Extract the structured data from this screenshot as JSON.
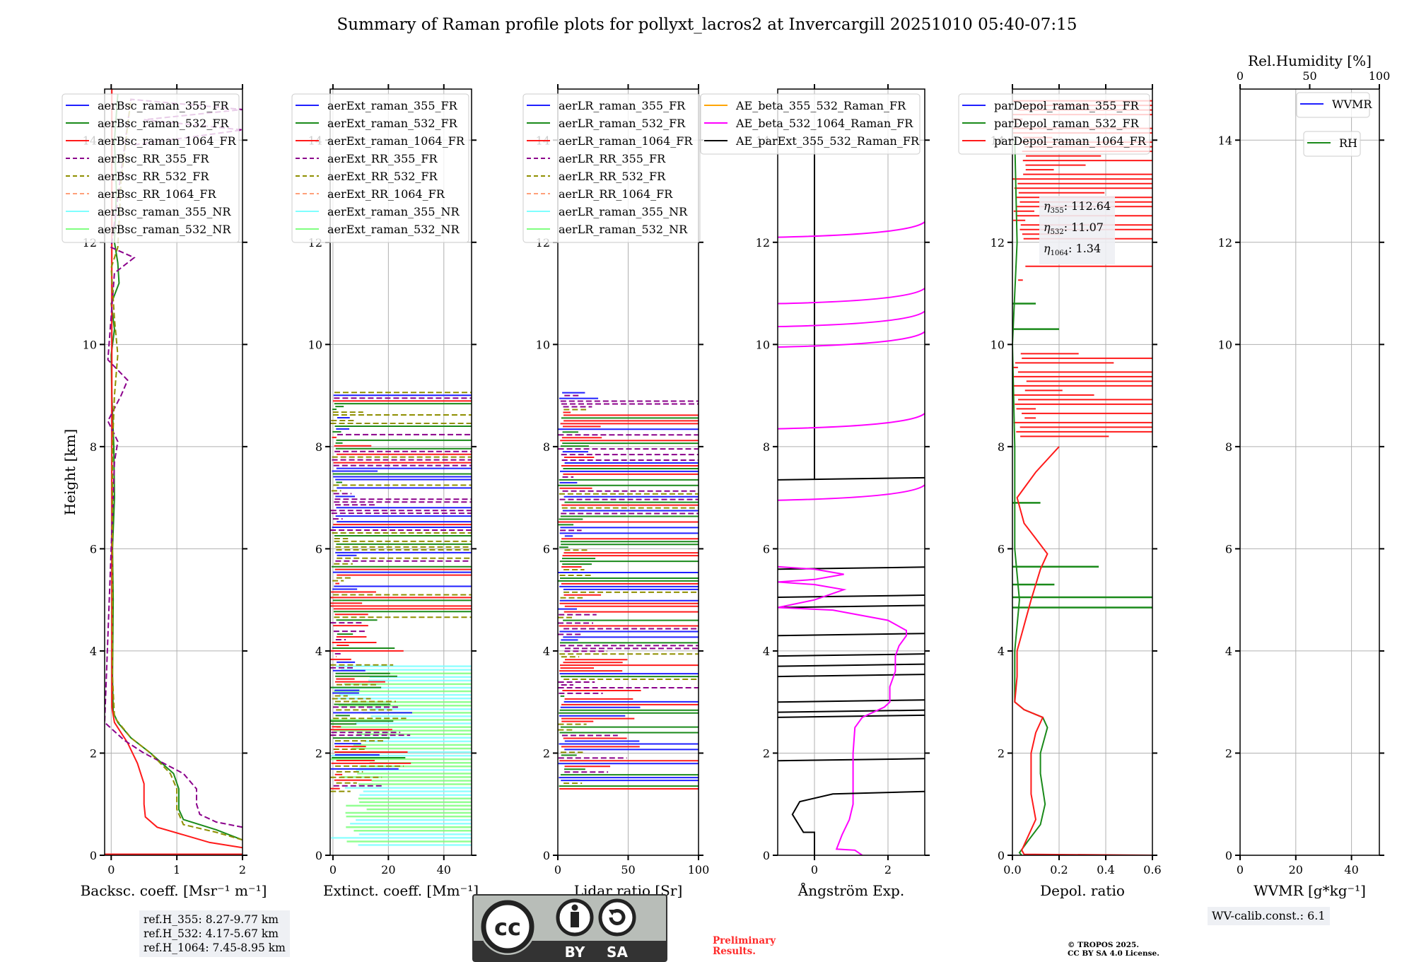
{
  "figure": {
    "title": "Summary of Raman profile plots for pollyxt_lacros2 at Invercargill 20251010 05:40-07:15",
    "ref_heights": [
      "ref.H_355: 8.27-9.77 km",
      "ref.H_532: 4.17-5.67 km",
      "ref.H_1064: 7.45-8.95 km"
    ],
    "eta_annotation": [
      {
        "label": "η355",
        "value": "112.64"
      },
      {
        "label": "η532",
        "value": "11.07"
      },
      {
        "label": "η1064",
        "value": "1.34"
      }
    ],
    "wv_calib": "WV-calib.const.: 6.1",
    "preliminary": [
      "Preliminary",
      "Results."
    ],
    "copyright": [
      "© TROPOS 2025.",
      "CC BY SA 4.0 License."
    ],
    "license_badge": {
      "cc": "cc",
      "by": "BY",
      "sa": "SA"
    }
  },
  "colors": {
    "blue": "#1f1fff",
    "green": "#1a8a1a",
    "red": "#ff1a1a",
    "purple": "#8b008b",
    "olive": "#8f8f00",
    "salmon": "#ffa07a",
    "cyan": "#7fffff",
    "lightgreen": "#80ff80",
    "orange": "#ffa500",
    "magenta": "#ff00ff",
    "black": "#000000",
    "grid": "#b0b0b0"
  },
  "chart_data": [
    {
      "type": "line",
      "id": "backscatter",
      "xlabel": "Backsc. coeff. [Msr⁻¹ m⁻¹]",
      "ylabel": "Height [km]",
      "xlim": [
        -0.1,
        2
      ],
      "ylim": [
        0,
        15
      ],
      "xticks": [
        0,
        1,
        2
      ],
      "yticks": [
        0,
        2,
        4,
        6,
        8,
        10,
        12,
        14
      ],
      "grid": true,
      "legend_position": "top-left",
      "series": [
        {
          "name": "aerBsc_raman_355_FR",
          "color": "blue",
          "dash": false,
          "points": []
        },
        {
          "name": "aerBsc_raman_532_FR",
          "color": "green",
          "dash": false,
          "points": [
            [
              2.0,
              0.3
            ],
            [
              1.6,
              0.5
            ],
            [
              1.1,
              0.7
            ],
            [
              1.03,
              0.9
            ],
            [
              1.03,
              1.3
            ],
            [
              0.95,
              1.6
            ],
            [
              0.6,
              2.0
            ],
            [
              0.3,
              2.3
            ],
            [
              0.1,
              2.6
            ],
            [
              0.03,
              2.8
            ],
            [
              0.02,
              3.5
            ],
            [
              0.03,
              5
            ],
            [
              0.02,
              6
            ],
            [
              0.05,
              7
            ],
            [
              0.04,
              8
            ],
            [
              0.01,
              9
            ],
            [
              0.0,
              9.8
            ],
            [
              0.05,
              10.3
            ],
            [
              0.0,
              10.8
            ],
            [
              0.12,
              11.2
            ],
            [
              0.1,
              11.6
            ],
            [
              0.05,
              12
            ],
            [
              0.08,
              13
            ],
            [
              0.05,
              14
            ],
            [
              0.1,
              14.9
            ]
          ]
        },
        {
          "name": "aerBsc_raman_1064_FR",
          "color": "red",
          "dash": false,
          "points": [
            [
              2.0,
              0.15
            ],
            [
              1.5,
              0.25
            ],
            [
              1.1,
              0.4
            ],
            [
              0.7,
              0.55
            ],
            [
              0.52,
              0.75
            ],
            [
              0.5,
              1.0
            ],
            [
              0.5,
              1.4
            ],
            [
              0.4,
              1.8
            ],
            [
              0.25,
              2.2
            ],
            [
              0.05,
              2.6
            ],
            [
              0.01,
              2.9
            ],
            [
              0.01,
              15
            ]
          ]
        },
        {
          "name": "aerBsc_RR_355_FR",
          "color": "purple",
          "dash": true,
          "points": [
            [
              2.0,
              0.55
            ],
            [
              1.6,
              0.65
            ],
            [
              1.35,
              0.8
            ],
            [
              1.3,
              1.0
            ],
            [
              1.3,
              1.3
            ],
            [
              1.1,
              1.6
            ],
            [
              0.8,
              1.8
            ],
            [
              0.5,
              2.0
            ],
            [
              0.2,
              2.25
            ],
            [
              -0.1,
              2.6
            ],
            [
              0.05,
              7.7
            ],
            [
              0.1,
              8.1
            ],
            [
              -0.05,
              8.5
            ],
            [
              0.15,
              9.0
            ],
            [
              0.25,
              9.3
            ],
            [
              -0.05,
              9.7
            ],
            [
              0.05,
              11.4
            ],
            [
              0.35,
              11.7
            ],
            [
              0.0,
              11.9
            ],
            [
              0.3,
              14.8
            ],
            [
              2.0,
              14.6
            ],
            [
              0.5,
              14.4
            ],
            [
              2.0,
              14.2
            ],
            [
              0.3,
              13.9
            ]
          ]
        },
        {
          "name": "aerBsc_RR_532_FR",
          "color": "olive",
          "dash": true,
          "points": [
            [
              2.0,
              0.3
            ],
            [
              1.6,
              0.45
            ],
            [
              1.1,
              0.6
            ],
            [
              1.0,
              0.9
            ],
            [
              1.0,
              1.3
            ],
            [
              0.9,
              1.6
            ],
            [
              0.6,
              2.0
            ],
            [
              0.3,
              2.3
            ],
            [
              0.05,
              2.7
            ],
            [
              0.02,
              3.5
            ],
            [
              0.02,
              8
            ],
            [
              0.05,
              9
            ],
            [
              0.1,
              9.8
            ],
            [
              0.05,
              10.5
            ],
            [
              0.0,
              11.5
            ],
            [
              0.1,
              11.9
            ],
            [
              0.15,
              13.2
            ],
            [
              0.3,
              14.8
            ]
          ]
        },
        {
          "name": "aerBsc_RR_1064_FR",
          "color": "salmon",
          "dash": true,
          "points": []
        },
        {
          "name": "aerBsc_raman_355_NR",
          "color": "cyan",
          "dash": false,
          "points": []
        },
        {
          "name": "aerBsc_raman_532_NR",
          "color": "lightgreen",
          "dash": false,
          "points": []
        }
      ]
    },
    {
      "type": "line",
      "id": "extinction",
      "xlabel": "Extinct. coeff. [Mm⁻¹]",
      "ylabel": "",
      "xlim": [
        -1,
        50
      ],
      "ylim": [
        0,
        15
      ],
      "xticks": [
        0,
        20,
        40
      ],
      "yticks": [
        0,
        2,
        4,
        6,
        8,
        10,
        12,
        14
      ],
      "grid": true,
      "legend_position": "top-left",
      "series": [
        {
          "name": "aerExt_raman_355_FR",
          "color": "blue",
          "dash": false,
          "points": []
        },
        {
          "name": "aerExt_raman_532_FR",
          "color": "green",
          "dash": false,
          "points": []
        },
        {
          "name": "aerExt_raman_1064_FR",
          "color": "red",
          "dash": false,
          "points": []
        },
        {
          "name": "aerExt_RR_355_FR",
          "color": "purple",
          "dash": true,
          "points": []
        },
        {
          "name": "aerExt_RR_532_FR",
          "color": "olive",
          "dash": true,
          "points": []
        },
        {
          "name": "aerExt_RR_1064_FR",
          "color": "salmon",
          "dash": true,
          "points": []
        },
        {
          "name": "aerExt_raman_355_NR",
          "color": "cyan",
          "dash": false,
          "points": []
        },
        {
          "name": "aerExt_raman_532_NR",
          "color": "lightgreen",
          "dash": false,
          "points": []
        }
      ],
      "note": "Noisy profiles between ~1.2 and ~9 km, NR signals saturated to right edge below ~3.7 km"
    },
    {
      "type": "line",
      "id": "lidar_ratio",
      "xlabel": "Lidar ratio [Sr]",
      "ylabel": "",
      "xlim": [
        0,
        100
      ],
      "ylim": [
        0,
        15
      ],
      "xticks": [
        0,
        50,
        100
      ],
      "yticks": [
        0,
        2,
        4,
        6,
        8,
        10,
        12,
        14
      ],
      "grid": true,
      "legend_position": "top-left",
      "series": [
        {
          "name": "aerLR_raman_355_FR",
          "color": "blue",
          "dash": false,
          "points": []
        },
        {
          "name": "aerLR_raman_532_FR",
          "color": "green",
          "dash": false,
          "points": []
        },
        {
          "name": "aerLR_raman_1064_FR",
          "color": "red",
          "dash": false,
          "points": []
        },
        {
          "name": "aerLR_RR_355_FR",
          "color": "purple",
          "dash": true,
          "points": []
        },
        {
          "name": "aerLR_RR_532_FR",
          "color": "olive",
          "dash": true,
          "points": []
        },
        {
          "name": "aerLR_RR_1064_FR",
          "color": "salmon",
          "dash": true,
          "points": []
        },
        {
          "name": "aerLR_raman_355_NR",
          "color": "cyan",
          "dash": false,
          "points": []
        },
        {
          "name": "aerLR_raman_532_NR",
          "color": "lightgreen",
          "dash": false,
          "points": []
        }
      ],
      "note": "Noisy profiles between ~1.3 and ~9 km"
    },
    {
      "type": "line",
      "id": "angstrom",
      "xlabel": "Ångström Exp.",
      "ylabel": "",
      "xlim": [
        -1,
        3
      ],
      "ylim": [
        0,
        15
      ],
      "xticks": [
        0,
        2
      ],
      "yticks": [
        0,
        2,
        4,
        6,
        8,
        10,
        12,
        14
      ],
      "grid": true,
      "legend_position": "top-left",
      "series": [
        {
          "name": "AE_beta_355_532_Raman_FR",
          "color": "orange",
          "dash": false,
          "points": []
        },
        {
          "name": "AE_beta_532_1064_Raman_FR",
          "color": "magenta",
          "dash": false,
          "points": [
            [
              1.3,
              0.0
            ],
            [
              1.1,
              0.1
            ],
            [
              0.6,
              0.12
            ],
            [
              0.75,
              0.4
            ],
            [
              0.95,
              0.7
            ],
            [
              1.05,
              1.0
            ],
            [
              1.05,
              2.0
            ],
            [
              1.1,
              2.5
            ],
            [
              1.3,
              2.7
            ],
            [
              1.9,
              2.9
            ],
            [
              2.05,
              3.0
            ],
            [
              2.05,
              3.3
            ],
            [
              2.2,
              3.6
            ],
            [
              2.2,
              3.9
            ],
            [
              2.3,
              4.1
            ],
            [
              2.5,
              4.3
            ],
            [
              2.5,
              4.4
            ],
            [
              2.0,
              4.6
            ],
            [
              0.5,
              4.8
            ],
            [
              -1,
              4.85
            ],
            [
              0.0,
              5.0
            ],
            [
              0.8,
              5.2
            ],
            [
              0.0,
              5.3
            ],
            [
              -1,
              5.35
            ],
            [
              0.0,
              5.4
            ],
            [
              0.8,
              5.5
            ],
            [
              0.0,
              5.6
            ],
            [
              -1,
              5.65
            ]
          ]
        },
        {
          "name": "AE_parExt_355_532_Raman_FR",
          "color": "black",
          "dash": false,
          "points": [
            [
              0,
              0
            ],
            [
              0,
              0.45
            ],
            [
              -0.3,
              0.45
            ],
            [
              -0.6,
              0.8
            ],
            [
              -0.4,
              1.05
            ],
            [
              0.5,
              1.2
            ],
            [
              3,
              1.25
            ]
          ]
        }
      ]
    },
    {
      "type": "line",
      "id": "depol",
      "xlabel": "Depol. ratio",
      "ylabel": "",
      "xlim": [
        0,
        0.6
      ],
      "ylim": [
        0,
        15
      ],
      "xticks": [
        0.0,
        0.2,
        0.4,
        0.6
      ],
      "yticks": [
        0,
        2,
        4,
        6,
        8,
        10,
        12,
        14
      ],
      "grid": true,
      "legend_position": "top-left",
      "series": [
        {
          "name": "parDepol_raman_355_FR",
          "color": "blue",
          "dash": false,
          "points": []
        },
        {
          "name": "parDepol_raman_532_FR",
          "color": "green",
          "dash": false,
          "points": [
            [
              0.04,
              0.0
            ],
            [
              0.03,
              0.05
            ],
            [
              0.07,
              0.3
            ],
            [
              0.12,
              0.6
            ],
            [
              0.14,
              1.0
            ],
            [
              0.12,
              1.6
            ],
            [
              0.12,
              2.0
            ],
            [
              0.15,
              2.5
            ],
            [
              0.13,
              2.7
            ],
            [
              0.05,
              2.85
            ],
            [
              0.01,
              3.0
            ],
            [
              0.01,
              4.0
            ],
            [
              0.02,
              4.5
            ],
            [
              0.03,
              5.0
            ],
            [
              0.01,
              6.0
            ],
            [
              0.01,
              8.0
            ],
            [
              0.0,
              10.0
            ],
            [
              0.02,
              12.0
            ],
            [
              0.01,
              14.0
            ]
          ]
        },
        {
          "name": "parDepol_raman_1064_FR",
          "color": "red",
          "dash": false,
          "points": [
            [
              0.6,
              0.0
            ],
            [
              0.05,
              0.02
            ],
            [
              0.04,
              0.1
            ],
            [
              0.06,
              0.3
            ],
            [
              0.1,
              0.7
            ],
            [
              0.08,
              1.2
            ],
            [
              0.08,
              2.0
            ],
            [
              0.1,
              2.4
            ],
            [
              0.13,
              2.7
            ],
            [
              0.05,
              2.85
            ],
            [
              0.01,
              3.0
            ],
            [
              0.02,
              3.5
            ],
            [
              0.02,
              4.0
            ],
            [
              0.05,
              4.5
            ],
            [
              0.08,
              5.0
            ],
            [
              0.12,
              5.6
            ],
            [
              0.15,
              5.9
            ],
            [
              0.1,
              6.2
            ],
            [
              0.05,
              6.5
            ],
            [
              0.02,
              7.0
            ],
            [
              0.1,
              7.5
            ],
            [
              0.2,
              8.0
            ]
          ]
        }
      ]
    },
    {
      "type": "line",
      "id": "wvmr",
      "xlabel": "WVMR [g*kg⁻¹]",
      "xlabel_top": "Rel.Humidity [%]",
      "ylabel": "",
      "xlim": [
        0,
        50
      ],
      "xlim_top": [
        0,
        100
      ],
      "ylim": [
        0,
        15
      ],
      "xticks": [
        0,
        20,
        40
      ],
      "xticks_top": [
        0,
        50,
        100
      ],
      "yticks": [
        0,
        2,
        4,
        6,
        8,
        10,
        12,
        14
      ],
      "grid": true,
      "legend_position": "top-right",
      "series": [
        {
          "name": "WVMR",
          "color": "blue",
          "dash": false,
          "points": []
        },
        {
          "name": "RH",
          "color": "green",
          "dash": false,
          "points": []
        }
      ]
    }
  ]
}
